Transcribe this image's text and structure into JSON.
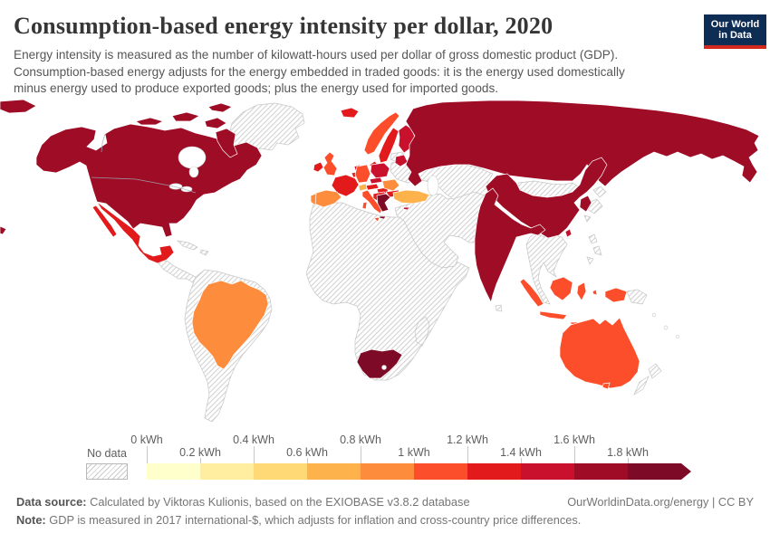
{
  "header": {
    "title": "Consumption-based energy intensity per dollar, 2020",
    "subtitle": "Energy intensity is measured as the number of kilowatt-hours used per dollar of gross domestic product (GDP). Consumption-based energy adjusts for the energy embedded in traded goods: it is the energy used domestically minus energy used to produce exported goods; plus the energy used for imported goods.",
    "logo": {
      "line1": "Our World",
      "line2": "in Data",
      "bg_color": "#0d2d55",
      "stripe_color": "#d2281e"
    }
  },
  "legend": {
    "no_data_label": "No data",
    "tick_labels": [
      "0 kWh",
      "0.2 kWh",
      "0.4 kWh",
      "0.6 kWh",
      "0.8 kWh",
      "1 kWh",
      "1.2 kWh",
      "1.4 kWh",
      "1.6 kWh",
      "1.8 kWh"
    ]
  },
  "footer": {
    "data_source_label": "Data source:",
    "data_source_text": " Calculated by Viktoras Kulionis, based on the EXIOBASE v3.8.2 database",
    "credit": "OurWorldinData.org/energy | CC BY",
    "note_label": "Note:",
    "note_text": " GDP is measured in 2017 international-$, which adjusts for inflation and cross-country price differences."
  },
  "chart_data": {
    "type": "choropleth",
    "title": "Consumption-based energy intensity per dollar, 2020",
    "unit": "kWh per dollar of GDP (2017 international-$)",
    "legend_position": "bottom",
    "bins": [
      {
        "range": "0–0.2 kWh",
        "color": "#FFFFCC"
      },
      {
        "range": "0.2–0.4 kWh",
        "color": "#FFEDA0"
      },
      {
        "range": "0.4–0.6 kWh",
        "color": "#FED976"
      },
      {
        "range": "0.6–0.8 kWh",
        "color": "#FEB24C"
      },
      {
        "range": "0.8–1 kWh",
        "color": "#FD8D3C"
      },
      {
        "range": "1–1.2 kWh",
        "color": "#FC4E2A"
      },
      {
        "range": "1.2–1.4 kWh",
        "color": "#E31A1C"
      },
      {
        "range": "1.4–1.6 kWh",
        "color": "#C9102C"
      },
      {
        "range": "1.6–1.8 kWh",
        "color": "#9E0C26"
      },
      {
        "range": "1.8+ kWh",
        "color": "#7D0A26"
      }
    ],
    "countries": {
      "united-states": {
        "name": "United States",
        "bin": "1.6–1.8 kWh",
        "color": "#9E0C26"
      },
      "canada": {
        "name": "Canada",
        "bin": "1.6–1.8 kWh",
        "color": "#9E0C26"
      },
      "russia": {
        "name": "Russia",
        "bin": "1.6–1.8 kWh",
        "color": "#9E0C26"
      },
      "china": {
        "name": "China",
        "bin": "1.6–1.8 kWh",
        "color": "#9E0C26"
      },
      "india": {
        "name": "India",
        "bin": "1.6–1.8 kWh",
        "color": "#9E0C26"
      },
      "south-korea": {
        "name": "South Korea",
        "bin": "1.6–1.8 kWh",
        "color": "#9E0C26"
      },
      "south-africa": {
        "name": "South Africa",
        "bin": "1.8+ kWh",
        "color": "#7D0A26"
      },
      "greece": {
        "name": "Greece",
        "bin": "1.8+ kWh",
        "color": "#7D0A26"
      },
      "mexico": {
        "name": "Mexico",
        "bin": "1.2–1.4 kWh",
        "color": "#E31A1C"
      },
      "brazil": {
        "name": "Brazil",
        "bin": "0.8–1 kWh",
        "color": "#FD8D3C"
      },
      "iceland": {
        "name": "Iceland",
        "bin": "1.2–1.4 kWh",
        "color": "#E31A1C"
      },
      "norway": {
        "name": "Norway",
        "bin": "1–1.2 kWh",
        "color": "#FC4E2A"
      },
      "sweden": {
        "name": "Sweden",
        "bin": "1.2–1.4 kWh",
        "color": "#E31A1C"
      },
      "finland": {
        "name": "Finland",
        "bin": "1.4–1.6 kWh",
        "color": "#C9102C"
      },
      "denmark": {
        "name": "Denmark",
        "bin": "1.2–1.4 kWh",
        "color": "#E31A1C"
      },
      "united-kingdom": {
        "name": "United Kingdom",
        "bin": "1–1.2 kWh",
        "color": "#FC4E2A"
      },
      "ireland": {
        "name": "Ireland",
        "bin": "1.2–1.4 kWh",
        "color": "#E31A1C"
      },
      "france": {
        "name": "France",
        "bin": "1.2–1.4 kWh",
        "color": "#E31A1C"
      },
      "germany": {
        "name": "Germany",
        "bin": "1–1.2 kWh",
        "color": "#FC4E2A"
      },
      "netherlands": {
        "name": "Netherlands",
        "bin": "1.4–1.6 kWh",
        "color": "#C9102C"
      },
      "belgium": {
        "name": "Belgium",
        "bin": "1.2–1.4 kWh",
        "color": "#E31A1C"
      },
      "poland": {
        "name": "Poland",
        "bin": "1.4–1.6 kWh",
        "color": "#C9102C"
      },
      "czechia": {
        "name": "Czechia",
        "bin": "1.4–1.6 kWh",
        "color": "#C9102C"
      },
      "baltic-states": {
        "name": "Baltic states",
        "bin": "1.4–1.6 kWh",
        "color": "#C9102C"
      },
      "austria": {
        "name": "Austria",
        "bin": "1.2–1.4 kWh",
        "color": "#E31A1C"
      },
      "switzerland": {
        "name": "Switzerland",
        "bin": "0.6–0.8 kWh",
        "color": "#FEB24C"
      },
      "hungary": {
        "name": "Hungary",
        "bin": "1.2–1.4 kWh",
        "color": "#E31A1C"
      },
      "balkans": {
        "name": "Balkan states",
        "bin": "1.2–1.4 kWh",
        "color": "#E31A1C"
      },
      "romania": {
        "name": "Romania",
        "bin": "0.8–1 kWh",
        "color": "#FD8D3C"
      },
      "bulgaria": {
        "name": "Bulgaria",
        "bin": "1.2–1.4 kWh",
        "color": "#E31A1C"
      },
      "italy": {
        "name": "Italy",
        "bin": "1–1.2 kWh",
        "color": "#FC4E2A"
      },
      "spain": {
        "name": "Spain",
        "bin": "0.8–1 kWh",
        "color": "#FD8D3C"
      },
      "portugal": {
        "name": "Portugal",
        "bin": "0.8–1 kWh",
        "color": "#FD8D3C"
      },
      "turkey": {
        "name": "Turkey",
        "bin": "0.6–0.8 kWh",
        "color": "#FEB24C"
      },
      "cyprus": {
        "name": "Cyprus",
        "bin": "1.4–1.6 kWh",
        "color": "#C9102C"
      },
      "taiwan": {
        "name": "Taiwan",
        "bin": "1.4–1.6 kWh",
        "color": "#C9102C"
      },
      "indonesia": {
        "name": "Indonesia",
        "bin": "1–1.2 kWh",
        "color": "#FC4E2A"
      },
      "australia": {
        "name": "Australia",
        "bin": "1–1.2 kWh",
        "color": "#FC4E2A"
      }
    },
    "no_data_regions": [
      "Greenland",
      "Central America",
      "Caribbean",
      "South America (except Brazil)",
      "Africa (except South Africa)",
      "Madagascar",
      "Ukraine",
      "Belarus",
      "Middle East",
      "Central Asia",
      "Mongolia",
      "Japan",
      "Southeast Asia",
      "Bangladesh",
      "Sri Lanka",
      "Philippines",
      "Papua New Guinea",
      "New Zealand"
    ]
  }
}
